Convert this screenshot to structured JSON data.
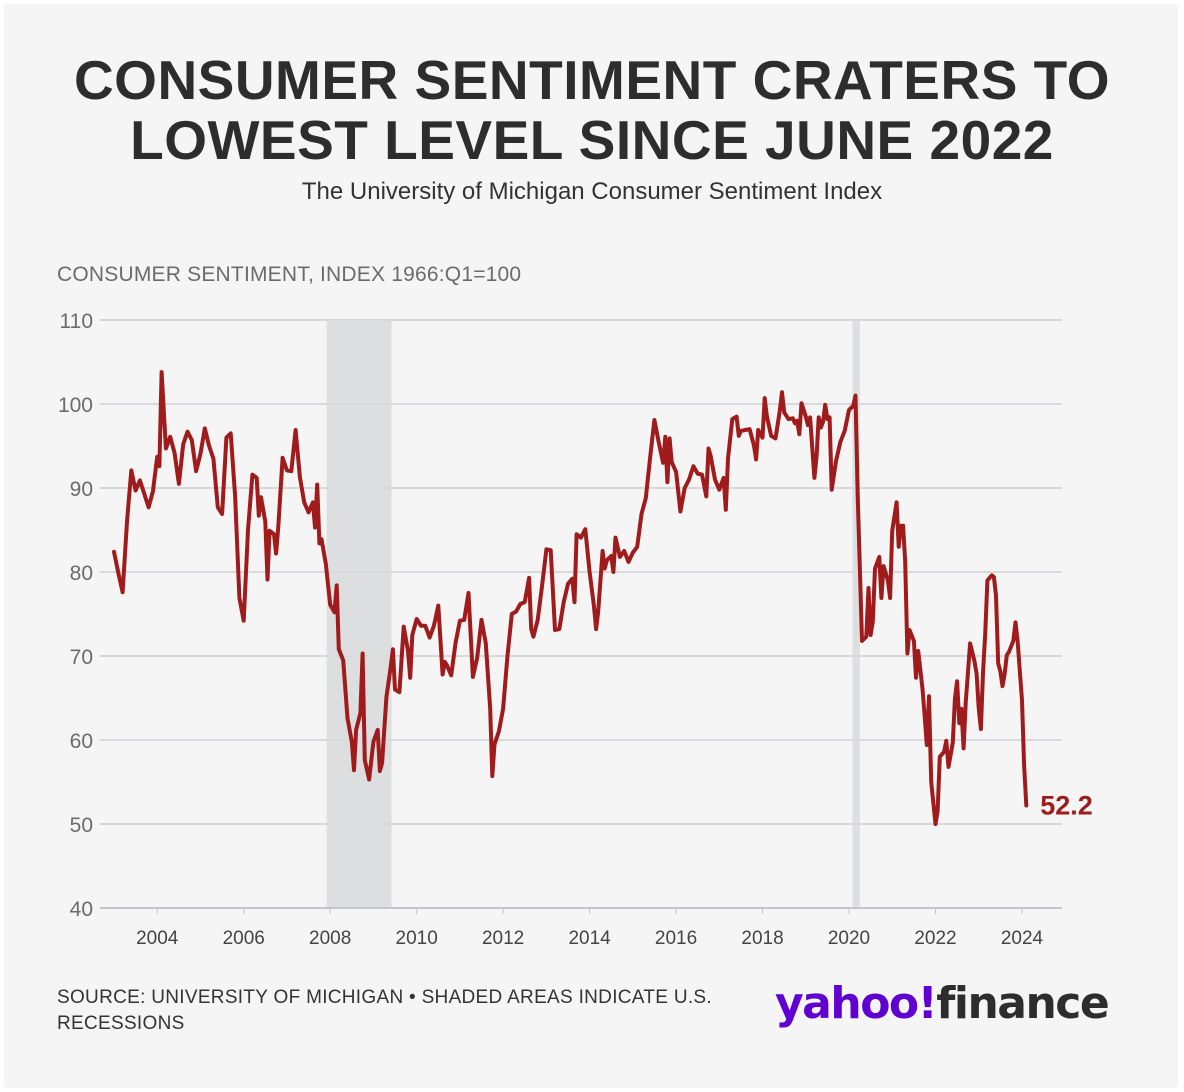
{
  "title_line1": "CONSUMER SENTIMENT CRATERS TO",
  "title_line2": "LOWEST LEVEL SINCE JUNE 2022",
  "subtitle": "The University of Michigan Consumer Sentiment Index",
  "source": "SOURCE: UNIVERSITY OF MICHIGAN • SHADED AREAS INDICATE U.S. RECESSIONS",
  "logo": {
    "yahoo": "yahoo!",
    "finance": "finance",
    "brand_color": "#6001d2"
  },
  "colors": {
    "line": "#a01c1c",
    "grid": "#d9d9dc",
    "recession": "#dcdee0"
  },
  "chart_data": {
    "type": "line",
    "title": "CONSUMER SENTIMENT CRATERS TO LOWEST LEVEL SINCE JUNE 2022",
    "subtitle": "The University of Michigan Consumer Sentiment Index",
    "ylabel": "CONSUMER SENTIMENT, INDEX 1966:Q1=100",
    "xlabel": "",
    "ylim": [
      40,
      110
    ],
    "xlim": [
      2003.0,
      2025.25
    ],
    "yticks": [
      40,
      50,
      60,
      70,
      80,
      90,
      100,
      110
    ],
    "xticks": [
      "2004",
      "2006",
      "2008",
      "2010",
      "2012",
      "2014",
      "2016",
      "2018",
      "2020",
      "2022",
      "2024"
    ],
    "grid": true,
    "legend": "none",
    "recessions": [
      [
        2007.92,
        2009.42
      ],
      [
        2020.08,
        2020.25
      ]
    ],
    "end_label": "52.2",
    "series": [
      {
        "points": [
          [
            2003.0,
            82.4
          ],
          [
            2003.1,
            79.9
          ],
          [
            2003.2,
            77.6
          ],
          [
            2003.3,
            86.0
          ],
          [
            2003.4,
            92.1
          ],
          [
            2003.5,
            89.7
          ],
          [
            2003.6,
            90.9
          ],
          [
            2003.7,
            89.3
          ],
          [
            2003.8,
            87.7
          ],
          [
            2003.9,
            89.6
          ],
          [
            2004.0,
            93.7
          ],
          [
            2004.05,
            92.6
          ],
          [
            2004.1,
            103.8
          ],
          [
            2004.2,
            94.7
          ],
          [
            2004.3,
            96.1
          ],
          [
            2004.4,
            94.2
          ],
          [
            2004.5,
            90.5
          ],
          [
            2004.6,
            95.2
          ],
          [
            2004.7,
            96.7
          ],
          [
            2004.8,
            95.7
          ],
          [
            2004.9,
            92.0
          ],
          [
            2005.0,
            94.1
          ],
          [
            2005.1,
            97.1
          ],
          [
            2005.2,
            95.0
          ],
          [
            2005.3,
            93.5
          ],
          [
            2005.4,
            87.7
          ],
          [
            2005.5,
            86.9
          ],
          [
            2005.6,
            96.0
          ],
          [
            2005.7,
            96.5
          ],
          [
            2005.8,
            89.1
          ],
          [
            2005.9,
            76.9
          ],
          [
            2006.0,
            74.2
          ],
          [
            2006.1,
            85.0
          ],
          [
            2006.2,
            91.6
          ],
          [
            2006.3,
            91.2
          ],
          [
            2006.35,
            86.7
          ],
          [
            2006.4,
            88.9
          ],
          [
            2006.5,
            86.0
          ],
          [
            2006.55,
            79.1
          ],
          [
            2006.6,
            84.9
          ],
          [
            2006.7,
            84.5
          ],
          [
            2006.75,
            82.2
          ],
          [
            2006.8,
            85.4
          ],
          [
            2006.9,
            93.6
          ],
          [
            2007.0,
            92.1
          ],
          [
            2007.1,
            92.0
          ],
          [
            2007.2,
            96.9
          ],
          [
            2007.3,
            91.3
          ],
          [
            2007.4,
            88.3
          ],
          [
            2007.5,
            87.1
          ],
          [
            2007.6,
            88.3
          ],
          [
            2007.65,
            85.3
          ],
          [
            2007.7,
            90.4
          ],
          [
            2007.75,
            83.4
          ],
          [
            2007.8,
            83.9
          ],
          [
            2007.9,
            80.9
          ],
          [
            2008.0,
            76.1
          ],
          [
            2008.1,
            75.2
          ],
          [
            2008.15,
            78.4
          ],
          [
            2008.2,
            70.8
          ],
          [
            2008.3,
            69.5
          ],
          [
            2008.4,
            62.6
          ],
          [
            2008.5,
            59.8
          ],
          [
            2008.55,
            56.4
          ],
          [
            2008.6,
            61.2
          ],
          [
            2008.7,
            63.2
          ],
          [
            2008.75,
            70.3
          ],
          [
            2008.8,
            57.6
          ],
          [
            2008.9,
            55.3
          ],
          [
            2009.0,
            59.8
          ],
          [
            2009.1,
            61.2
          ],
          [
            2009.15,
            56.3
          ],
          [
            2009.2,
            57.3
          ],
          [
            2009.3,
            65.1
          ],
          [
            2009.4,
            68.7
          ],
          [
            2009.45,
            70.8
          ],
          [
            2009.5,
            66.0
          ],
          [
            2009.6,
            65.7
          ],
          [
            2009.7,
            73.5
          ],
          [
            2009.8,
            70.6
          ],
          [
            2009.85,
            67.4
          ],
          [
            2009.9,
            72.5
          ],
          [
            2010.0,
            74.4
          ],
          [
            2010.1,
            73.6
          ],
          [
            2010.2,
            73.6
          ],
          [
            2010.3,
            72.2
          ],
          [
            2010.4,
            73.6
          ],
          [
            2010.5,
            76.0
          ],
          [
            2010.6,
            67.8
          ],
          [
            2010.65,
            69.3
          ],
          [
            2010.7,
            68.9
          ],
          [
            2010.8,
            67.7
          ],
          [
            2010.9,
            71.6
          ],
          [
            2011.0,
            74.2
          ],
          [
            2011.1,
            74.3
          ],
          [
            2011.2,
            77.5
          ],
          [
            2011.3,
            67.5
          ],
          [
            2011.4,
            69.8
          ],
          [
            2011.5,
            74.3
          ],
          [
            2011.6,
            71.5
          ],
          [
            2011.7,
            63.7
          ],
          [
            2011.75,
            55.7
          ],
          [
            2011.8,
            59.5
          ],
          [
            2011.9,
            61.0
          ],
          [
            2012.0,
            63.7
          ],
          [
            2012.1,
            69.9
          ],
          [
            2012.2,
            75.0
          ],
          [
            2012.3,
            75.3
          ],
          [
            2012.4,
            76.2
          ],
          [
            2012.5,
            76.4
          ],
          [
            2012.6,
            79.3
          ],
          [
            2012.65,
            73.2
          ],
          [
            2012.7,
            72.3
          ],
          [
            2012.8,
            74.3
          ],
          [
            2012.9,
            78.3
          ],
          [
            2013.0,
            82.7
          ],
          [
            2013.1,
            82.6
          ],
          [
            2013.2,
            73.1
          ],
          [
            2013.3,
            73.2
          ],
          [
            2013.4,
            76.4
          ],
          [
            2013.5,
            78.6
          ],
          [
            2013.6,
            79.2
          ],
          [
            2013.65,
            76.4
          ],
          [
            2013.7,
            84.5
          ],
          [
            2013.8,
            84.1
          ],
          [
            2013.9,
            85.1
          ],
          [
            2014.0,
            80.0
          ],
          [
            2014.1,
            76.0
          ],
          [
            2014.15,
            73.2
          ],
          [
            2014.2,
            75.3
          ],
          [
            2014.3,
            82.5
          ],
          [
            2014.35,
            80.4
          ],
          [
            2014.4,
            81.4
          ],
          [
            2014.5,
            81.9
          ],
          [
            2014.55,
            80.0
          ],
          [
            2014.6,
            84.1
          ],
          [
            2014.7,
            81.8
          ],
          [
            2014.8,
            82.5
          ],
          [
            2014.9,
            81.2
          ],
          [
            2015.0,
            82.3
          ],
          [
            2015.1,
            83.0
          ],
          [
            2015.2,
            86.9
          ],
          [
            2015.3,
            88.8
          ],
          [
            2015.4,
            93.6
          ],
          [
            2015.5,
            98.1
          ],
          [
            2015.6,
            95.4
          ],
          [
            2015.7,
            93.0
          ],
          [
            2015.75,
            96.1
          ],
          [
            2015.8,
            90.7
          ],
          [
            2015.85,
            95.9
          ],
          [
            2015.9,
            93.1
          ],
          [
            2016.0,
            91.9
          ],
          [
            2016.1,
            87.2
          ],
          [
            2016.2,
            90.0
          ],
          [
            2016.3,
            91.0
          ],
          [
            2016.4,
            92.6
          ],
          [
            2016.5,
            91.7
          ],
          [
            2016.6,
            91.6
          ],
          [
            2016.7,
            89.0
          ],
          [
            2016.75,
            94.7
          ],
          [
            2016.8,
            93.8
          ],
          [
            2016.9,
            91.0
          ],
          [
            2017.0,
            89.8
          ],
          [
            2017.1,
            91.2
          ],
          [
            2017.15,
            87.4
          ],
          [
            2017.2,
            93.5
          ],
          [
            2017.3,
            98.2
          ],
          [
            2017.4,
            98.5
          ],
          [
            2017.45,
            96.2
          ],
          [
            2017.5,
            96.8
          ],
          [
            2017.6,
            96.9
          ],
          [
            2017.7,
            97.0
          ],
          [
            2017.8,
            95.1
          ],
          [
            2017.85,
            93.4
          ],
          [
            2017.9,
            96.9
          ],
          [
            2018.0,
            96.0
          ],
          [
            2018.05,
            100.7
          ],
          [
            2018.1,
            98.5
          ],
          [
            2018.2,
            96.2
          ],
          [
            2018.3,
            95.9
          ],
          [
            2018.4,
            99.2
          ],
          [
            2018.45,
            101.4
          ],
          [
            2018.5,
            99.0
          ],
          [
            2018.6,
            98.2
          ],
          [
            2018.7,
            98.3
          ],
          [
            2018.75,
            97.7
          ],
          [
            2018.8,
            98.0
          ],
          [
            2018.85,
            96.4
          ],
          [
            2018.9,
            100.1
          ],
          [
            2019.0,
            98.5
          ],
          [
            2019.05,
            97.5
          ],
          [
            2019.1,
            98.4
          ],
          [
            2019.2,
            91.2
          ],
          [
            2019.25,
            93.8
          ],
          [
            2019.3,
            98.4
          ],
          [
            2019.35,
            97.2
          ],
          [
            2019.4,
            97.9
          ],
          [
            2019.45,
            99.9
          ],
          [
            2019.5,
            98.2
          ],
          [
            2019.55,
            98.4
          ],
          [
            2019.6,
            89.8
          ],
          [
            2019.7,
            93.2
          ],
          [
            2019.8,
            95.5
          ],
          [
            2019.9,
            96.8
          ],
          [
            2020.0,
            99.3
          ],
          [
            2020.1,
            99.8
          ],
          [
            2020.15,
            101.0
          ],
          [
            2020.2,
            89.1
          ],
          [
            2020.3,
            71.8
          ],
          [
            2020.4,
            72.3
          ],
          [
            2020.45,
            78.1
          ],
          [
            2020.5,
            72.5
          ],
          [
            2020.55,
            74.1
          ],
          [
            2020.6,
            80.4
          ],
          [
            2020.7,
            81.8
          ],
          [
            2020.75,
            76.9
          ],
          [
            2020.8,
            80.7
          ],
          [
            2020.9,
            79.0
          ],
          [
            2020.95,
            76.9
          ],
          [
            2021.0,
            84.9
          ],
          [
            2021.1,
            88.3
          ],
          [
            2021.15,
            83.0
          ],
          [
            2021.2,
            85.5
          ],
          [
            2021.25,
            85.5
          ],
          [
            2021.3,
            81.2
          ],
          [
            2021.35,
            70.3
          ],
          [
            2021.4,
            73.1
          ],
          [
            2021.5,
            71.8
          ],
          [
            2021.55,
            67.4
          ],
          [
            2021.6,
            70.6
          ],
          [
            2021.7,
            66.1
          ],
          [
            2021.75,
            62.8
          ],
          [
            2021.8,
            59.4
          ],
          [
            2021.85,
            65.2
          ],
          [
            2021.9,
            55.0
          ],
          [
            2022.0,
            50.0
          ],
          [
            2022.05,
            51.5
          ],
          [
            2022.1,
            58.0
          ],
          [
            2022.2,
            58.6
          ],
          [
            2022.25,
            59.9
          ],
          [
            2022.3,
            56.8
          ],
          [
            2022.4,
            59.7
          ],
          [
            2022.45,
            64.9
          ],
          [
            2022.5,
            67.0
          ],
          [
            2022.55,
            62.0
          ],
          [
            2022.6,
            63.7
          ],
          [
            2022.65,
            59.0
          ],
          [
            2022.7,
            64.4
          ],
          [
            2022.8,
            71.5
          ],
          [
            2022.9,
            69.4
          ],
          [
            2022.95,
            67.9
          ],
          [
            2023.0,
            63.8
          ],
          [
            2023.05,
            61.3
          ],
          [
            2023.1,
            68.0
          ],
          [
            2023.15,
            72.6
          ],
          [
            2023.2,
            79.0
          ],
          [
            2023.3,
            79.6
          ],
          [
            2023.35,
            79.4
          ],
          [
            2023.4,
            77.2
          ],
          [
            2023.45,
            69.1
          ],
          [
            2023.5,
            68.2
          ],
          [
            2023.55,
            66.4
          ],
          [
            2023.6,
            67.9
          ],
          [
            2023.65,
            70.1
          ],
          [
            2023.7,
            70.5
          ],
          [
            2023.8,
            71.8
          ],
          [
            2023.85,
            74.0
          ],
          [
            2023.9,
            71.8
          ],
          [
            2024.0,
            64.7
          ],
          [
            2024.05,
            57.0
          ],
          [
            2024.1,
            52.2
          ]
        ]
      }
    ]
  }
}
